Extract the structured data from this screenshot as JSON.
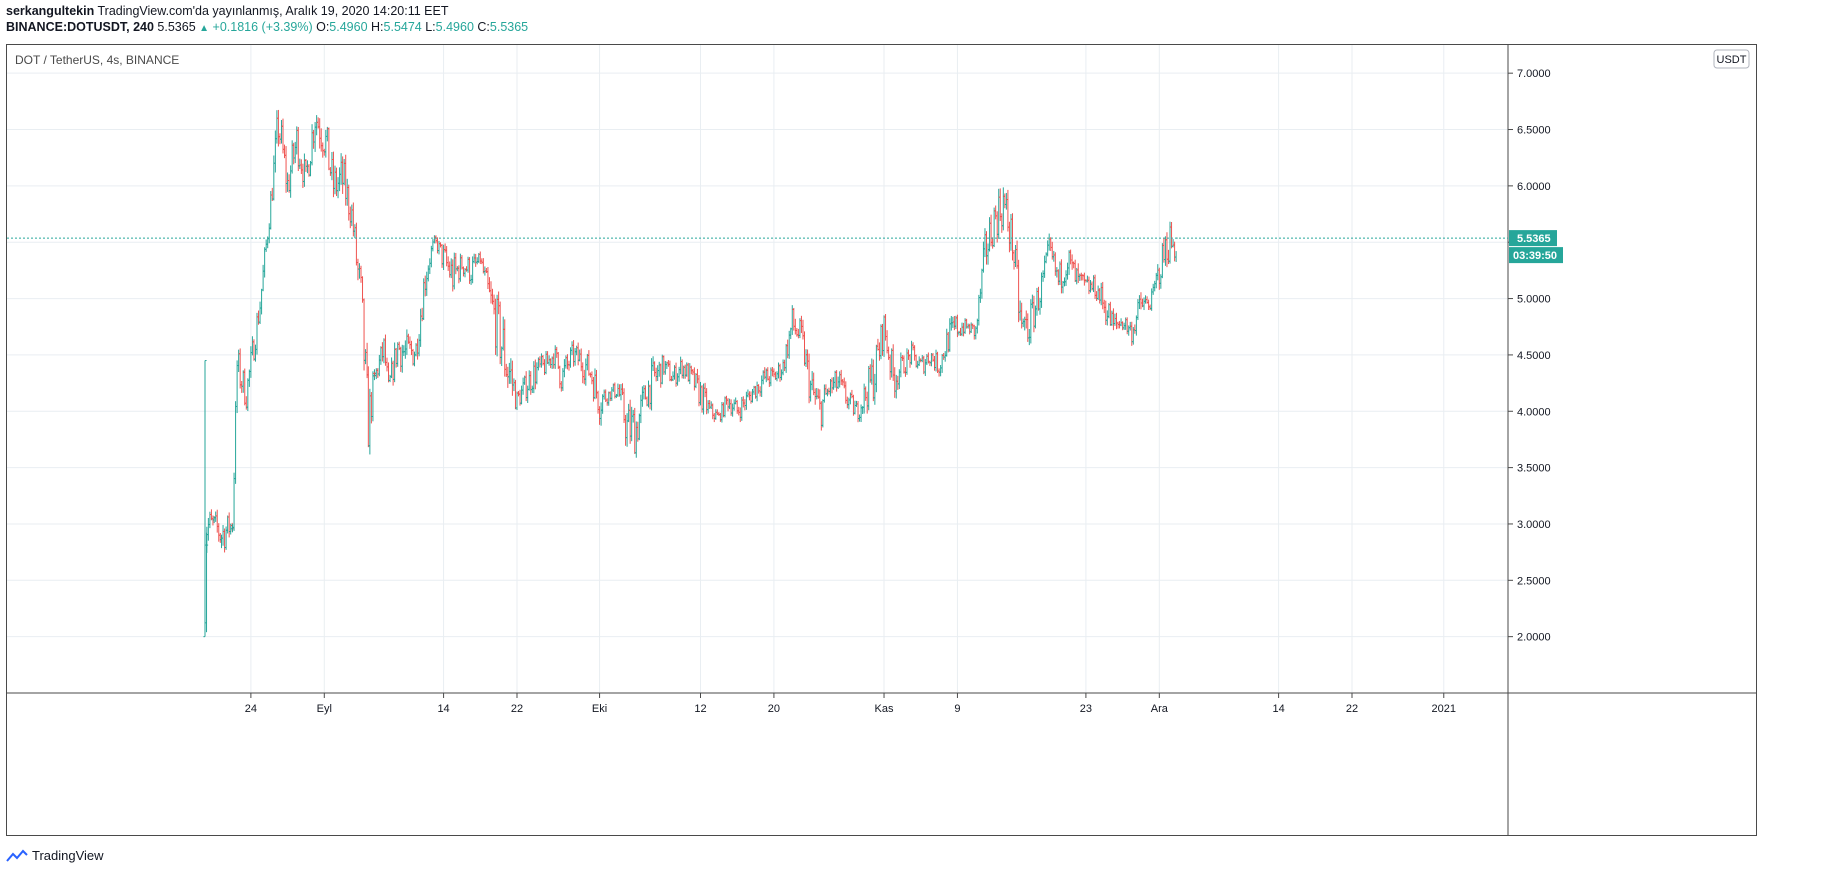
{
  "header": {
    "author": "serkangultekin",
    "published_text": "TradingView.com'da yayınlanmış, Aralık 19, 2020 14:20:11 EET",
    "symbol": "BINANCE:DOTUSDT, 240",
    "last_price": "5.5365",
    "change": "+0.1816 (+3.39%)",
    "o_label": "O:",
    "o_value": "5.4960",
    "h_label": "H:",
    "h_value": "5.5474",
    "l_label": "L:",
    "l_value": "5.4960",
    "c_label": "C:",
    "c_value": "5.5365"
  },
  "legend": {
    "title": "DOT / TetherUS, 4s, BINANCE"
  },
  "currency_badge": "USDT",
  "price_tag": {
    "price": "5.5365",
    "countdown": "03:39:50"
  },
  "footer": {
    "brand": "TradingView"
  },
  "colors": {
    "up": "#26a69a",
    "down": "#ef5350",
    "grid": "#e9eef2",
    "axis_text": "#131722"
  },
  "chart_data": {
    "type": "ohlc",
    "title": "DOT / TetherUS, 4s, BINANCE",
    "ylim": [
      1.5,
      7.25
    ],
    "y_ticks": [
      "2.0000",
      "2.5000",
      "3.0000",
      "3.5000",
      "4.0000",
      "4.5000",
      "5.0000",
      "5.5000",
      "6.0000",
      "6.5000",
      "7.0000"
    ],
    "x_ticks": [
      {
        "label": "24",
        "day": 5
      },
      {
        "label": "Eyl",
        "day": 13
      },
      {
        "label": "14",
        "day": 26
      },
      {
        "label": "22",
        "day": 34
      },
      {
        "label": "Eki",
        "day": 43
      },
      {
        "label": "12",
        "day": 54
      },
      {
        "label": "20",
        "day": 62
      },
      {
        "label": "Kas",
        "day": 74
      },
      {
        "label": "9",
        "day": 82
      },
      {
        "label": "23",
        "day": 96
      },
      {
        "label": "Ara",
        "day": 104
      },
      {
        "label": "14",
        "day": 117
      },
      {
        "label": "22",
        "day": 125
      },
      {
        "label": "2021",
        "day": 135
      }
    ],
    "x_range_days": [
      0,
      142
    ],
    "last_price": 5.5365,
    "approx_path": [
      [
        0.0,
        2.0,
        4.45
      ],
      [
        0.2,
        2.75,
        3.2
      ],
      [
        1.0,
        2.9,
        3.1
      ],
      [
        1.8,
        2.7,
        3.1
      ],
      [
        3.0,
        2.9,
        3.1
      ],
      [
        3.5,
        4.2,
        4.6
      ],
      [
        4.5,
        4.0,
        4.3
      ],
      [
        6.0,
        4.8,
        5.1
      ],
      [
        7.0,
        5.6,
        5.85
      ],
      [
        8.0,
        6.3,
        6.8
      ],
      [
        9.0,
        5.8,
        6.2
      ],
      [
        10.0,
        6.2,
        6.6
      ],
      [
        11.0,
        5.9,
        6.2
      ],
      [
        12.0,
        6.4,
        6.85
      ],
      [
        13.0,
        6.2,
        6.7
      ],
      [
        14.0,
        5.8,
        6.2
      ],
      [
        15.0,
        5.8,
        6.3
      ],
      [
        16.0,
        5.6,
        5.9
      ],
      [
        17.0,
        4.6,
        5.3
      ],
      [
        17.8,
        3.6,
        4.2
      ],
      [
        18.5,
        4.2,
        4.4
      ],
      [
        19.5,
        4.4,
        4.7
      ],
      [
        20.0,
        4.1,
        4.3
      ],
      [
        21.0,
        4.4,
        4.75
      ],
      [
        22.0,
        4.3,
        4.7
      ],
      [
        23.0,
        4.4,
        4.7
      ],
      [
        24.0,
        5.0,
        5.4
      ],
      [
        25.0,
        5.5,
        5.55
      ],
      [
        26.0,
        5.2,
        5.5
      ],
      [
        27.0,
        5.0,
        5.4
      ],
      [
        28.0,
        5.2,
        5.4
      ],
      [
        29.0,
        5.1,
        5.4
      ],
      [
        30.0,
        5.3,
        5.4
      ],
      [
        31.0,
        4.8,
        5.2
      ],
      [
        33.0,
        4.0,
        4.8
      ],
      [
        34.0,
        4.0,
        4.2
      ],
      [
        36.0,
        4.2,
        4.5
      ],
      [
        37.0,
        4.3,
        4.5
      ],
      [
        38.0,
        4.4,
        4.6
      ],
      [
        39.0,
        4.1,
        4.5
      ],
      [
        40.0,
        4.4,
        4.6
      ],
      [
        41.0,
        4.3,
        4.6
      ],
      [
        42.0,
        4.2,
        4.5
      ],
      [
        43.0,
        3.9,
        4.3
      ],
      [
        44.0,
        4.1,
        4.2
      ],
      [
        45.0,
        4.1,
        4.3
      ],
      [
        46.0,
        3.6,
        4.1
      ],
      [
        47.0,
        3.6,
        4.1
      ],
      [
        48.0,
        4.0,
        4.3
      ],
      [
        49.0,
        4.1,
        4.5
      ],
      [
        50.0,
        4.3,
        4.5
      ],
      [
        51.0,
        4.2,
        4.4
      ],
      [
        52.0,
        4.3,
        4.5
      ],
      [
        53.0,
        4.2,
        4.4
      ],
      [
        54.0,
        4.0,
        4.3
      ],
      [
        55.0,
        3.9,
        4.1
      ],
      [
        56.0,
        3.9,
        4.0
      ],
      [
        57.0,
        4.0,
        4.2
      ],
      [
        58.0,
        3.9,
        4.1
      ],
      [
        59.0,
        4.0,
        4.2
      ],
      [
        60.0,
        4.1,
        4.3
      ],
      [
        61.0,
        4.2,
        4.4
      ],
      [
        62.0,
        4.2,
        4.4
      ],
      [
        63.0,
        4.3,
        4.5
      ],
      [
        64.0,
        4.6,
        4.95
      ],
      [
        65.0,
        4.5,
        4.8
      ],
      [
        66.0,
        4.0,
        4.4
      ],
      [
        67.0,
        3.8,
        4.2
      ],
      [
        68.0,
        4.1,
        4.3
      ],
      [
        69.0,
        4.1,
        4.4
      ],
      [
        70.0,
        4.0,
        4.2
      ],
      [
        71.0,
        3.9,
        4.1
      ],
      [
        72.0,
        4.0,
        4.3
      ],
      [
        73.0,
        4.1,
        4.6
      ],
      [
        74.0,
        4.6,
        4.9
      ],
      [
        75.0,
        4.1,
        4.5
      ],
      [
        76.0,
        4.3,
        4.5
      ],
      [
        77.0,
        4.4,
        4.6
      ],
      [
        78.0,
        4.3,
        4.5
      ],
      [
        79.0,
        4.4,
        4.6
      ],
      [
        80.0,
        4.3,
        4.5
      ],
      [
        81.0,
        4.5,
        4.8
      ],
      [
        82.0,
        4.6,
        4.9
      ],
      [
        83.0,
        4.7,
        4.8
      ],
      [
        84.0,
        4.6,
        4.8
      ],
      [
        85.0,
        5.2,
        5.6
      ],
      [
        86.0,
        5.5,
        5.9
      ],
      [
        87.0,
        5.6,
        6.1
      ],
      [
        88.0,
        5.3,
        5.7
      ],
      [
        89.0,
        4.4,
        5.0
      ],
      [
        90.0,
        4.6,
        5.0
      ],
      [
        91.0,
        4.9,
        5.2
      ],
      [
        92.0,
        5.3,
        5.55
      ],
      [
        93.0,
        5.0,
        5.3
      ],
      [
        94.0,
        5.2,
        5.5
      ],
      [
        95.0,
        5.0,
        5.3
      ],
      [
        96.0,
        5.0,
        5.2
      ],
      [
        97.0,
        5.0,
        5.2
      ],
      [
        98.0,
        4.8,
        5.1
      ],
      [
        99.0,
        4.6,
        4.9
      ],
      [
        100.0,
        4.7,
        4.9
      ],
      [
        101.0,
        4.6,
        4.8
      ],
      [
        102.0,
        4.8,
        5.1
      ],
      [
        103.0,
        4.9,
        5.0
      ],
      [
        104.0,
        5.1,
        5.4
      ],
      [
        105.0,
        5.3,
        5.75
      ],
      [
        106.0,
        5.3,
        5.55
      ]
    ]
  }
}
